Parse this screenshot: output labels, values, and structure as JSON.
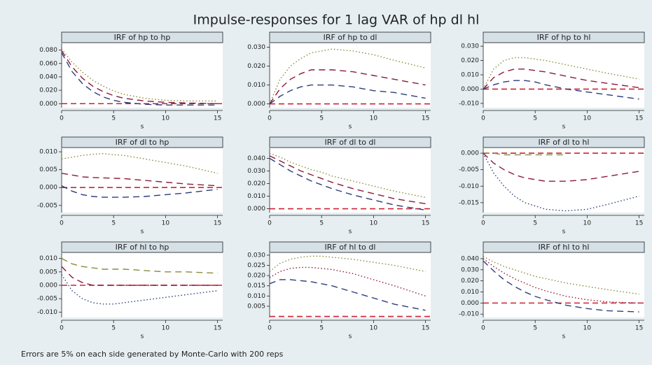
{
  "title": "Impulse-responses for 1 lag VAR of hp dl hl",
  "note": "Errors are 5% on each side generated by Monte-Carlo with 200 reps",
  "chart_data": [
    {
      "type": "line",
      "title": "IRF of hp to hp",
      "xlabel": "s",
      "x": [
        0,
        1,
        2,
        3,
        4,
        5,
        6,
        8,
        10,
        12,
        15
      ],
      "xlim": [
        0,
        15.5
      ],
      "xticks": [
        0,
        5,
        10,
        15
      ],
      "ylim": [
        -0.006,
        0.09
      ],
      "yticks": [
        {
          "value": 0,
          "label": "0.000"
        },
        {
          "value": 0.02,
          "label": "0.020"
        },
        {
          "value": 0.04,
          "label": "0.040"
        },
        {
          "value": 0.06,
          "label": "0.060"
        },
        {
          "value": 0.08,
          "label": "0.080"
        }
      ],
      "yline": 0,
      "yline_color": "#cc2233",
      "series": [
        {
          "color": "#8a8a3c",
          "dash": "dot",
          "values": [
            0.082,
            0.062,
            0.047,
            0.035,
            0.026,
            0.019,
            0.014,
            0.008,
            0.005,
            0.004,
            0.004
          ]
        },
        {
          "color": "#8b1a3a",
          "dash": "dash",
          "values": [
            0.079,
            0.055,
            0.038,
            0.026,
            0.018,
            0.012,
            0.008,
            0.004,
            0.002,
            0.001,
            0
          ]
        },
        {
          "color": "#2a3d7a",
          "dash": "dash",
          "values": [
            0.076,
            0.048,
            0.03,
            0.018,
            0.01,
            0.005,
            0.002,
            -0.001,
            -0.002,
            -0.002,
            -0.002
          ]
        }
      ]
    },
    {
      "type": "line",
      "title": "IRF of hp to dl",
      "xlabel": "s",
      "x": [
        0,
        1,
        2,
        3,
        4,
        5,
        6,
        8,
        10,
        12,
        15
      ],
      "xlim": [
        0,
        15.5
      ],
      "xticks": [
        0,
        5,
        10,
        15
      ],
      "ylim": [
        -0.002,
        0.032
      ],
      "yticks": [
        {
          "value": 0,
          "label": "0.000"
        },
        {
          "value": 0.01,
          "label": "0.010"
        },
        {
          "value": 0.02,
          "label": "0.020"
        },
        {
          "value": 0.03,
          "label": "0.030"
        }
      ],
      "yline": 0,
      "yline_color": "#cc2233",
      "series": [
        {
          "color": "#8a8a3c",
          "dash": "dot",
          "values": [
            0,
            0.013,
            0.02,
            0.024,
            0.027,
            0.028,
            0.029,
            0.028,
            0.026,
            0.023,
            0.019
          ]
        },
        {
          "color": "#8b1a3a",
          "dash": "dash",
          "values": [
            0,
            0.008,
            0.013,
            0.016,
            0.018,
            0.018,
            0.018,
            0.017,
            0.015,
            0.013,
            0.01
          ]
        },
        {
          "color": "#2a3d7a",
          "dash": "dash",
          "values": [
            0,
            0.004,
            0.007,
            0.009,
            0.01,
            0.01,
            0.01,
            0.009,
            0.007,
            0.006,
            0.003
          ]
        }
      ]
    },
    {
      "type": "line",
      "title": "IRF of hp to hl",
      "xlabel": "s",
      "x": [
        0,
        1,
        2,
        3,
        4,
        5,
        6,
        8,
        10,
        12,
        15
      ],
      "xlim": [
        0,
        15.5
      ],
      "xticks": [
        0,
        5,
        10,
        15
      ],
      "ylim": [
        -0.013,
        0.032
      ],
      "yticks": [
        {
          "value": -0.01,
          "label": "-0.010"
        },
        {
          "value": 0,
          "label": "0.000"
        },
        {
          "value": 0.01,
          "label": "0.010"
        },
        {
          "value": 0.02,
          "label": "0.020"
        },
        {
          "value": 0.03,
          "label": "0.030"
        }
      ],
      "yline": 0,
      "yline_color": "#cc2233",
      "series": [
        {
          "color": "#8a8a3c",
          "dash": "dot",
          "values": [
            0,
            0.014,
            0.02,
            0.022,
            0.022,
            0.021,
            0.02,
            0.017,
            0.014,
            0.011,
            0.007
          ]
        },
        {
          "color": "#8b1a3a",
          "dash": "dash",
          "values": [
            0,
            0.008,
            0.012,
            0.014,
            0.014,
            0.013,
            0.012,
            0.009,
            0.006,
            0.004,
            0.001
          ]
        },
        {
          "color": "#2a3d7a",
          "dash": "dash",
          "values": [
            0,
            0.003,
            0.005,
            0.006,
            0.006,
            0.005,
            0.003,
            0,
            -0.002,
            -0.004,
            -0.007
          ]
        }
      ]
    },
    {
      "type": "line",
      "title": "IRF of dl to hp",
      "xlabel": "s",
      "x": [
        0,
        1,
        2,
        3,
        4,
        5,
        6,
        8,
        10,
        12,
        15
      ],
      "xlim": [
        0,
        15.5
      ],
      "xticks": [
        0,
        5,
        10,
        15
      ],
      "ylim": [
        -0.007,
        0.011
      ],
      "yticks": [
        {
          "value": -0.005,
          "label": "-0.005"
        },
        {
          "value": 0,
          "label": "0.000"
        },
        {
          "value": 0.005,
          "label": "0.005"
        },
        {
          "value": 0.01,
          "label": "0.010"
        }
      ],
      "yline": 0,
      "yline_color": "#cc2233",
      "series": [
        {
          "color": "#8a8a3c",
          "dash": "dot",
          "values": [
            0.008,
            0.0085,
            0.009,
            0.0093,
            0.0095,
            0.0092,
            0.009,
            0.008,
            0.007,
            0.006,
            0.004
          ]
        },
        {
          "color": "#8b1a3a",
          "dash": "dash",
          "values": [
            0.004,
            0.0035,
            0.003,
            0.0028,
            0.0027,
            0.0026,
            0.0025,
            0.002,
            0.0015,
            0.001,
            0.0005
          ]
        },
        {
          "color": "#2a3d7a",
          "dash": "dash",
          "values": [
            0.0005,
            -0.001,
            -0.002,
            -0.0025,
            -0.0027,
            -0.0027,
            -0.0027,
            -0.0025,
            -0.002,
            -0.0015,
            -0.0005
          ]
        }
      ]
    },
    {
      "type": "line",
      "title": "IRF of dl to dl",
      "xlabel": "s",
      "x": [
        0,
        1,
        2,
        3,
        4,
        5,
        6,
        8,
        10,
        12,
        15
      ],
      "xlim": [
        0,
        15.5
      ],
      "xticks": [
        0,
        5,
        10,
        15
      ],
      "ylim": [
        -0.003,
        0.048
      ],
      "yticks": [
        {
          "value": 0,
          "label": "0.000"
        },
        {
          "value": 0.01,
          "label": "0.010"
        },
        {
          "value": 0.02,
          "label": "0.020"
        },
        {
          "value": 0.03,
          "label": "0.030"
        },
        {
          "value": 0.04,
          "label": "0.040"
        }
      ],
      "yline": 0,
      "yline_color": "#cc2233",
      "series": [
        {
          "color": "#8a8a3c",
          "dash": "dot",
          "values": [
            0.044,
            0.041,
            0.037,
            0.034,
            0.031,
            0.029,
            0.026,
            0.022,
            0.018,
            0.014,
            0.009
          ]
        },
        {
          "color": "#8b1a3a",
          "dash": "dash",
          "values": [
            0.042,
            0.038,
            0.034,
            0.03,
            0.027,
            0.024,
            0.021,
            0.016,
            0.012,
            0.008,
            0.004
          ]
        },
        {
          "color": "#2a3d7a",
          "dash": "dash",
          "values": [
            0.04,
            0.035,
            0.03,
            0.026,
            0.022,
            0.019,
            0.016,
            0.011,
            0.007,
            0.003,
            -0.001
          ]
        }
      ]
    },
    {
      "type": "line",
      "title": "IRF of dl to hl",
      "xlabel": "s",
      "x": [
        0,
        1,
        2,
        3,
        4,
        5,
        6,
        8,
        10,
        12,
        15
      ],
      "xlim": [
        0,
        15.5
      ],
      "xticks": [
        0,
        5,
        10,
        15
      ],
      "ylim": [
        -0.018,
        0.0015
      ],
      "yticks": [
        {
          "value": -0.015,
          "label": "-0.015"
        },
        {
          "value": -0.01,
          "label": "-0.010"
        },
        {
          "value": -0.005,
          "label": "-0.005"
        },
        {
          "value": 0,
          "label": "0.000"
        }
      ],
      "yline": 0,
      "yline_color": "#cc2233",
      "series": [
        {
          "color": "#8a8a3c",
          "dash": "dash",
          "values": [
            0,
            0,
            -0.0005,
            -0.0005,
            -0.0005,
            -0.0005,
            -0.0005,
            -0.0005,
            null,
            null,
            null
          ]
        },
        {
          "color": "#8b1a3a",
          "dash": "dash",
          "values": [
            0,
            -0.003,
            -0.005,
            -0.0065,
            -0.0075,
            -0.008,
            -0.0085,
            -0.0085,
            -0.008,
            -0.007,
            -0.0055
          ]
        },
        {
          "color": "#2a3d7a",
          "dash": "dot",
          "values": [
            0,
            -0.006,
            -0.01,
            -0.013,
            -0.015,
            -0.016,
            -0.017,
            -0.0175,
            -0.017,
            -0.0155,
            -0.013
          ]
        }
      ]
    },
    {
      "type": "line",
      "title": "IRF of hl to hp",
      "xlabel": "s",
      "x": [
        0,
        1,
        2,
        3,
        4,
        5,
        6,
        8,
        10,
        12,
        15
      ],
      "xlim": [
        0,
        15.5
      ],
      "xticks": [
        0,
        5,
        10,
        15
      ],
      "ylim": [
        -0.012,
        0.012
      ],
      "yticks": [
        {
          "value": -0.01,
          "label": "-0.010"
        },
        {
          "value": -0.005,
          "label": "-0.005"
        },
        {
          "value": 0,
          "label": "0.000"
        },
        {
          "value": 0.005,
          "label": "0.005"
        },
        {
          "value": 0.01,
          "label": "0.010"
        }
      ],
      "yline": 0,
      "yline_color": "#cc2233",
      "series": [
        {
          "color": "#8a8a3c",
          "dash": "dash",
          "values": [
            0.01,
            0.008,
            0.007,
            0.0065,
            0.006,
            0.006,
            0.006,
            0.0055,
            0.005,
            0.005,
            0.0045
          ]
        },
        {
          "color": "#8b1a3a",
          "dash": "dash",
          "values": [
            0.007,
            0.003,
            0.001,
            0,
            0,
            0,
            0,
            0,
            0,
            0,
            0
          ]
        },
        {
          "color": "#2a3d7a",
          "dash": "dot",
          "values": [
            0.004,
            -0.002,
            -0.005,
            -0.0065,
            -0.007,
            -0.007,
            -0.0065,
            -0.0055,
            -0.0045,
            -0.0035,
            -0.002
          ]
        }
      ]
    },
    {
      "type": "line",
      "title": "IRF of hl to dl",
      "xlabel": "s",
      "x": [
        0,
        1,
        2,
        3,
        4,
        5,
        6,
        8,
        10,
        12,
        15
      ],
      "xlim": [
        0,
        15.5
      ],
      "xticks": [
        0,
        5,
        10,
        15
      ],
      "ylim": [
        -0.0005,
        0.031
      ],
      "yticks": [
        {
          "value": 0.005,
          "label": "0.005"
        },
        {
          "value": 0.01,
          "label": "0.010"
        },
        {
          "value": 0.015,
          "label": "0.015"
        },
        {
          "value": 0.02,
          "label": "0.020"
        },
        {
          "value": 0.025,
          "label": "0.025"
        },
        {
          "value": 0.03,
          "label": "0.030"
        }
      ],
      "yline": 0,
      "yline_color": "#cc2233",
      "series": [
        {
          "color": "#8a8a3c",
          "dash": "dot",
          "values": [
            0.022,
            0.026,
            0.028,
            0.029,
            0.0295,
            0.0295,
            0.029,
            0.028,
            0.0265,
            0.025,
            0.022
          ]
        },
        {
          "color": "#8b1a3a",
          "dash": "dot",
          "values": [
            0.019,
            0.022,
            0.0235,
            0.024,
            0.024,
            0.0235,
            0.023,
            0.021,
            0.018,
            0.015,
            0.01
          ]
        },
        {
          "color": "#2a3d7a",
          "dash": "dash",
          "values": [
            0.016,
            0.018,
            0.018,
            0.0175,
            0.017,
            0.016,
            0.015,
            0.012,
            0.009,
            0.006,
            0.003
          ]
        }
      ]
    },
    {
      "type": "line",
      "title": "IRF of hl to hl",
      "xlabel": "s",
      "x": [
        0,
        1,
        2,
        3,
        4,
        5,
        6,
        8,
        10,
        12,
        15
      ],
      "xlim": [
        0,
        15.5
      ],
      "xticks": [
        0,
        5,
        10,
        15
      ],
      "ylim": [
        -0.013,
        0.045
      ],
      "yticks": [
        {
          "value": -0.01,
          "label": "-0.010"
        },
        {
          "value": 0,
          "label": "0.000"
        },
        {
          "value": 0.01,
          "label": "0.010"
        },
        {
          "value": 0.02,
          "label": "0.020"
        },
        {
          "value": 0.03,
          "label": "0.030"
        },
        {
          "value": 0.04,
          "label": "0.040"
        }
      ],
      "yline": 0,
      "yline_color": "#cc2233",
      "series": [
        {
          "color": "#8a8a3c",
          "dash": "dot",
          "values": [
            0.042,
            0.037,
            0.033,
            0.03,
            0.027,
            0.024,
            0.022,
            0.018,
            0.015,
            0.012,
            0.008
          ]
        },
        {
          "color": "#8b1a3a",
          "dash": "dot",
          "values": [
            0.04,
            0.033,
            0.027,
            0.022,
            0.018,
            0.014,
            0.011,
            0.006,
            0.003,
            0.001,
            0
          ]
        },
        {
          "color": "#2a3d7a",
          "dash": "dash",
          "values": [
            0.038,
            0.029,
            0.021,
            0.015,
            0.01,
            0.006,
            0.003,
            -0.002,
            -0.005,
            -0.007,
            -0.008
          ]
        }
      ]
    }
  ]
}
